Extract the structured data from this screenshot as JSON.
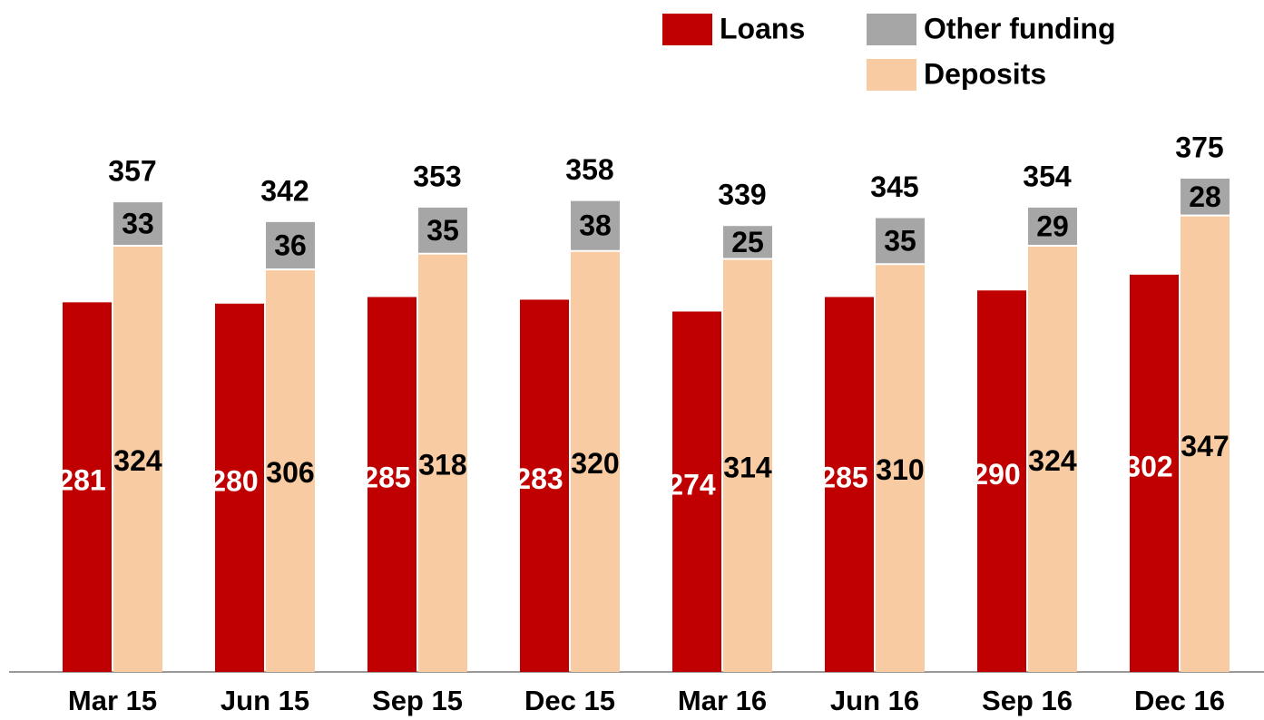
{
  "chart_data": {
    "type": "bar",
    "categories": [
      "Mar 15",
      "Jun 15",
      "Sep 15",
      "Dec 15",
      "Mar 16",
      "Jun 16",
      "Sep 16",
      "Dec 16"
    ],
    "series": [
      {
        "name": "Loans",
        "color": "#c00000",
        "values": [
          281,
          280,
          285,
          283,
          274,
          285,
          290,
          302
        ]
      },
      {
        "name": "Deposits",
        "color": "#f8cba2",
        "stack": "funding",
        "values": [
          324,
          306,
          318,
          320,
          314,
          310,
          324,
          347
        ]
      },
      {
        "name": "Other funding",
        "color": "#a6a6a6",
        "stack": "funding",
        "values": [
          33,
          36,
          35,
          38,
          25,
          35,
          29,
          28
        ]
      }
    ],
    "totals": [
      357,
      342,
      353,
      358,
      339,
      345,
      354,
      375
    ]
  }
}
